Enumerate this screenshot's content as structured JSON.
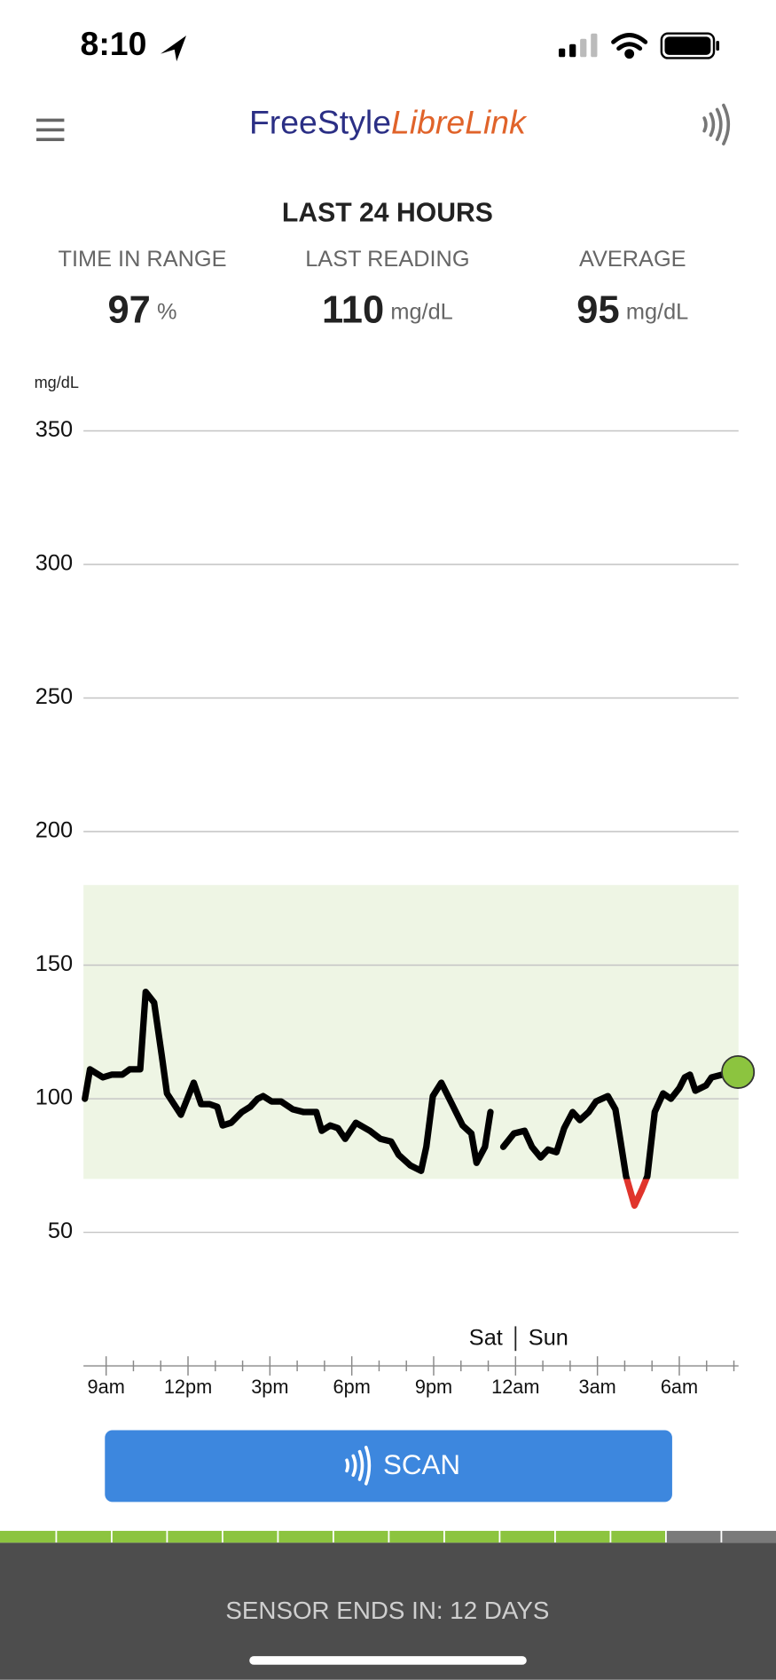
{
  "status_bar": {
    "time": "8:10"
  },
  "header": {
    "brand_part1": "FreeStyle",
    "brand_part2": "LibreLink"
  },
  "summary": {
    "title": "LAST 24 HOURS",
    "stats": [
      {
        "label": "TIME IN RANGE",
        "value": 97,
        "unit": "%"
      },
      {
        "label": "LAST READING",
        "value": 110,
        "unit": "mg/dL"
      },
      {
        "label": "AVERAGE",
        "value": 95,
        "unit": "mg/dL"
      }
    ]
  },
  "chart_data": {
    "type": "line",
    "y_label": "mg/dL",
    "x": [
      8.22,
      8.41,
      8.88,
      9.2,
      9.59,
      9.86,
      10.25,
      10.45,
      10.76,
      11.04,
      11.23,
      11.74,
      12.21,
      12.48,
      12.79,
      13.07,
      13.27,
      13.58,
      13.97,
      14.28,
      14.55,
      14.75,
      15.06,
      15.41,
      15.84,
      16.24,
      16.7,
      16.9,
      17.21,
      17.49,
      17.76,
      18.15,
      18.66,
      19.05,
      19.44,
      19.72,
      20.15,
      20.54,
      20.73,
      20.97,
      21.28,
      21.67,
      22.06,
      22.38,
      22.57,
      22.88,
      23.08,
      23.3,
      23.55,
      23.94,
      24.33,
      24.6,
      24.92,
      25.19,
      25.5,
      25.78,
      26.09,
      26.36,
      26.68,
      26.95,
      27.38,
      27.66,
      27.85,
      28.05,
      28.36,
      28.63,
      28.83,
      29.1,
      29.41,
      29.69,
      30,
      30.2,
      30.39,
      30.59,
      30.98,
      31.18,
      31.57,
      32.15
    ],
    "series": [
      {
        "color": "#000000",
        "values": [
          100,
          111,
          108,
          109,
          109,
          111,
          111,
          140,
          136,
          116,
          102,
          94,
          106,
          98,
          98,
          97,
          90,
          91,
          95,
          97,
          100,
          101,
          99,
          99,
          96,
          95,
          95,
          88,
          90,
          89,
          85,
          91,
          88,
          85,
          84,
          79,
          75,
          73,
          82,
          101,
          106,
          98,
          90,
          87,
          76,
          82,
          95,
          null,
          82,
          87,
          88,
          82,
          78,
          81,
          80,
          89,
          95,
          92,
          95,
          99,
          101,
          96,
          84,
          71,
          60,
          66,
          71,
          95,
          102,
          100,
          104,
          108,
          109,
          103,
          105,
          108,
          109,
          110
        ]
      }
    ],
    "low_color": "#e0342c",
    "dot_color": "#8cc43f",
    "target_range": [
      70,
      180
    ],
    "target_color": "#eef5e4",
    "xlim": [
      8.17,
      32.17
    ],
    "xticks": [
      {
        "value": 9,
        "label": "9am"
      },
      {
        "value": 12,
        "label": "12pm"
      },
      {
        "value": 15,
        "label": "3pm"
      },
      {
        "value": 18,
        "label": "6pm"
      },
      {
        "value": 21,
        "label": "9pm"
      },
      {
        "value": 24,
        "label": "12am"
      },
      {
        "value": 27,
        "label": "3am"
      },
      {
        "value": 30,
        "label": "6am"
      }
    ],
    "xminorticks": [
      10,
      11,
      13,
      14,
      16,
      17,
      19,
      20,
      22,
      23,
      25,
      26,
      28,
      29,
      31,
      32
    ],
    "day_divider": {
      "value": 24,
      "labels": [
        "Sat",
        "Sun"
      ]
    },
    "ylim": [
      0,
      350
    ],
    "yticks": [
      50,
      100,
      150,
      200,
      250,
      300,
      350
    ],
    "grid": true
  },
  "scan_button": {
    "label": "SCAN"
  },
  "sensor": {
    "segments_total": 14,
    "segments_remaining": 12,
    "remaining_color": "#8cc43f",
    "used_color": "#7a7a7a",
    "message": "SENSOR ENDS IN: 12 DAYS"
  }
}
